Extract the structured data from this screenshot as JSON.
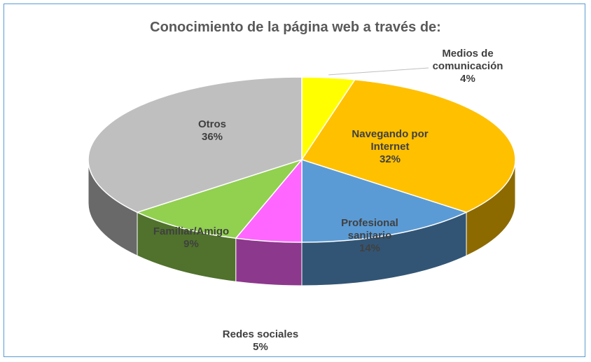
{
  "chart_data": {
    "type": "pie3d",
    "title": "Conocimiento  de la página web a través de:",
    "categories": [
      "Medios de comunicación",
      "Navegando por Internet",
      "Profesional sanitario",
      "Redes sociales",
      "Familiar/Amigo",
      "Otros"
    ],
    "values": [
      4,
      32,
      14,
      5,
      9,
      36
    ],
    "value_labels": [
      "4%",
      "32%",
      "14%",
      "5%",
      "9%",
      "36%"
    ],
    "colors": [
      "#ffff00",
      "#ffc000",
      "#5b9bd5",
      "#ff66ff",
      "#92d050",
      "#bfbfbf"
    ]
  }
}
